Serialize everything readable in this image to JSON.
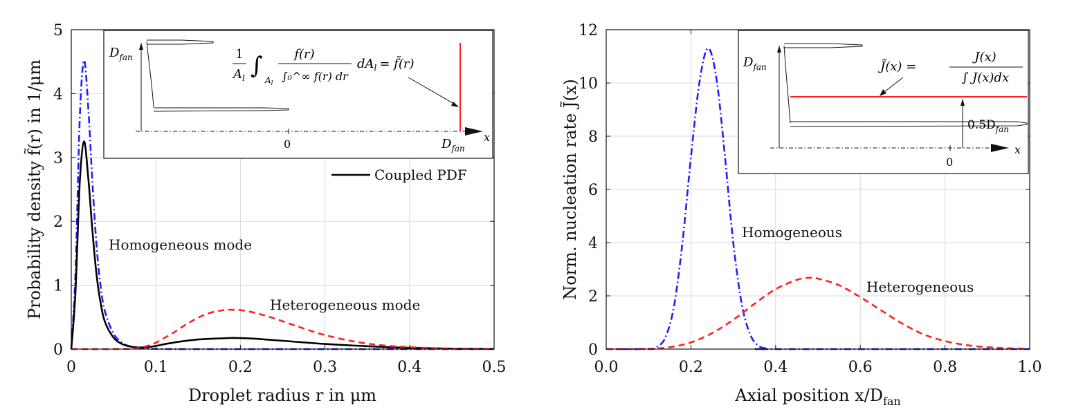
{
  "chart_data": [
    {
      "type": "line",
      "xlabel": "Droplet radius r in μm",
      "ylabel": "Probability density f̃(r) in 1/μm",
      "xlim": [
        0,
        0.5
      ],
      "ylim": [
        0,
        5
      ],
      "xticks": [
        "0",
        "0.1",
        "0.2",
        "0.3",
        "0.4",
        "0.5"
      ],
      "yticks": [
        "0",
        "1",
        "2",
        "3",
        "4",
        "5"
      ],
      "grid": true,
      "legend": {
        "position": "upper-right, below inset",
        "entries": [
          "Coupled PDF"
        ]
      },
      "annotations": {
        "homogeneous": "Homogeneous mode",
        "heterogeneous": "Heterogeneous mode"
      },
      "series": [
        {
          "name": "Homogeneous mode",
          "color": "#1f1fff",
          "style": "dash-dot",
          "x": [
            0,
            0.005,
            0.01,
            0.015,
            0.02,
            0.025,
            0.03,
            0.035,
            0.04,
            0.05,
            0.06,
            0.07,
            0.08,
            0.1,
            0.15,
            0.2,
            0.3,
            0.4,
            0.5
          ],
          "y": [
            0,
            1.2,
            3.6,
            4.52,
            3.8,
            2.6,
            1.6,
            0.95,
            0.58,
            0.24,
            0.1,
            0.04,
            0.015,
            0.003,
            0,
            0,
            0,
            0,
            0
          ]
        },
        {
          "name": "Coupled PDF",
          "color": "#000000",
          "style": "solid",
          "x": [
            0,
            0.005,
            0.01,
            0.015,
            0.02,
            0.025,
            0.03,
            0.035,
            0.04,
            0.05,
            0.06,
            0.07,
            0.08,
            0.09,
            0.1,
            0.12,
            0.15,
            0.18,
            0.19,
            0.2,
            0.22,
            0.25,
            0.3,
            0.35,
            0.4,
            0.45,
            0.5
          ],
          "y": [
            0,
            0.9,
            2.6,
            3.25,
            2.7,
            1.85,
            1.15,
            0.7,
            0.42,
            0.18,
            0.08,
            0.04,
            0.025,
            0.03,
            0.05,
            0.1,
            0.15,
            0.17,
            0.175,
            0.172,
            0.16,
            0.13,
            0.08,
            0.045,
            0.02,
            0.008,
            0.002
          ]
        },
        {
          "name": "Heterogeneous mode",
          "color": "#ff1f1f",
          "style": "dashed",
          "x": [
            0,
            0.05,
            0.07,
            0.08,
            0.09,
            0.1,
            0.12,
            0.14,
            0.16,
            0.18,
            0.19,
            0.2,
            0.22,
            0.24,
            0.26,
            0.28,
            0.3,
            0.33,
            0.36,
            0.4,
            0.45,
            0.5
          ],
          "y": [
            0,
            0,
            0.005,
            0.02,
            0.05,
            0.1,
            0.25,
            0.42,
            0.55,
            0.61,
            0.615,
            0.61,
            0.56,
            0.48,
            0.39,
            0.3,
            0.22,
            0.13,
            0.07,
            0.03,
            0.008,
            0.002
          ]
        }
      ],
      "inset": {
        "equation": {
          "frac1_num": "1",
          "frac1_den": "A",
          "frac1_den_sub": "l",
          "integral": "∫",
          "int_sub": "A",
          "int_sub_sub": "l",
          "frac2_num": "f(r)",
          "frac2_den": "∫₀^∞ f(r) dr",
          "rhs": "dA",
          "rhs_sub": "l",
          "equals": "= f̃(r)"
        },
        "dfan_left": "D",
        "dfan_left_sub": "fan",
        "zero": "0",
        "dfan_right": "D",
        "dfan_right_sub": "fan",
        "xaxis": "x"
      }
    },
    {
      "type": "line",
      "xlabel": "Axial position x/D",
      "xlabel_sub": "fan",
      "ylabel": "Norm. nucleation rate J̃(x)",
      "xlim": [
        0,
        1
      ],
      "ylim": [
        0,
        12
      ],
      "xticks": [
        "0.0",
        "0.2",
        "0.4",
        "0.6",
        "0.8",
        "1.0"
      ],
      "yticks": [
        "0",
        "2",
        "4",
        "6",
        "8",
        "10",
        "12"
      ],
      "grid": true,
      "annotations": {
        "homogeneous": "Homogeneous",
        "heterogeneous": "Heterogeneous"
      },
      "series": [
        {
          "name": "Homogeneous",
          "color": "#1f1fff",
          "style": "dash-dot",
          "x": [
            0,
            0.1,
            0.12,
            0.14,
            0.16,
            0.18,
            0.2,
            0.22,
            0.24,
            0.26,
            0.28,
            0.3,
            0.32,
            0.34,
            0.36,
            0.38,
            0.4,
            1.0
          ],
          "y": [
            0,
            0,
            0.08,
            0.45,
            1.6,
            4.0,
            7.2,
            10.0,
            11.3,
            10.2,
            7.3,
            4.0,
            1.7,
            0.55,
            0.12,
            0.02,
            0,
            0
          ]
        },
        {
          "name": "Heterogeneous",
          "color": "#ff1f1f",
          "style": "dashed",
          "x": [
            0,
            0.1,
            0.15,
            0.2,
            0.25,
            0.3,
            0.35,
            0.4,
            0.45,
            0.48,
            0.5,
            0.55,
            0.6,
            0.65,
            0.7,
            0.75,
            0.8,
            0.85,
            0.9,
            0.95,
            1.0
          ],
          "y": [
            0,
            0.01,
            0.07,
            0.25,
            0.6,
            1.1,
            1.7,
            2.25,
            2.6,
            2.68,
            2.65,
            2.4,
            1.95,
            1.45,
            0.95,
            0.55,
            0.3,
            0.15,
            0.07,
            0.03,
            0.01
          ]
        }
      ],
      "inset": {
        "equation": {
          "lhs": "J̃(x) =",
          "num": "J(x)",
          "den": "∫ J(x)dx"
        },
        "dfan_left": "D",
        "dfan_left_sub": "fan",
        "half": "0.5D",
        "half_sub": "fan",
        "zero": "0",
        "xaxis": "x"
      }
    }
  ]
}
